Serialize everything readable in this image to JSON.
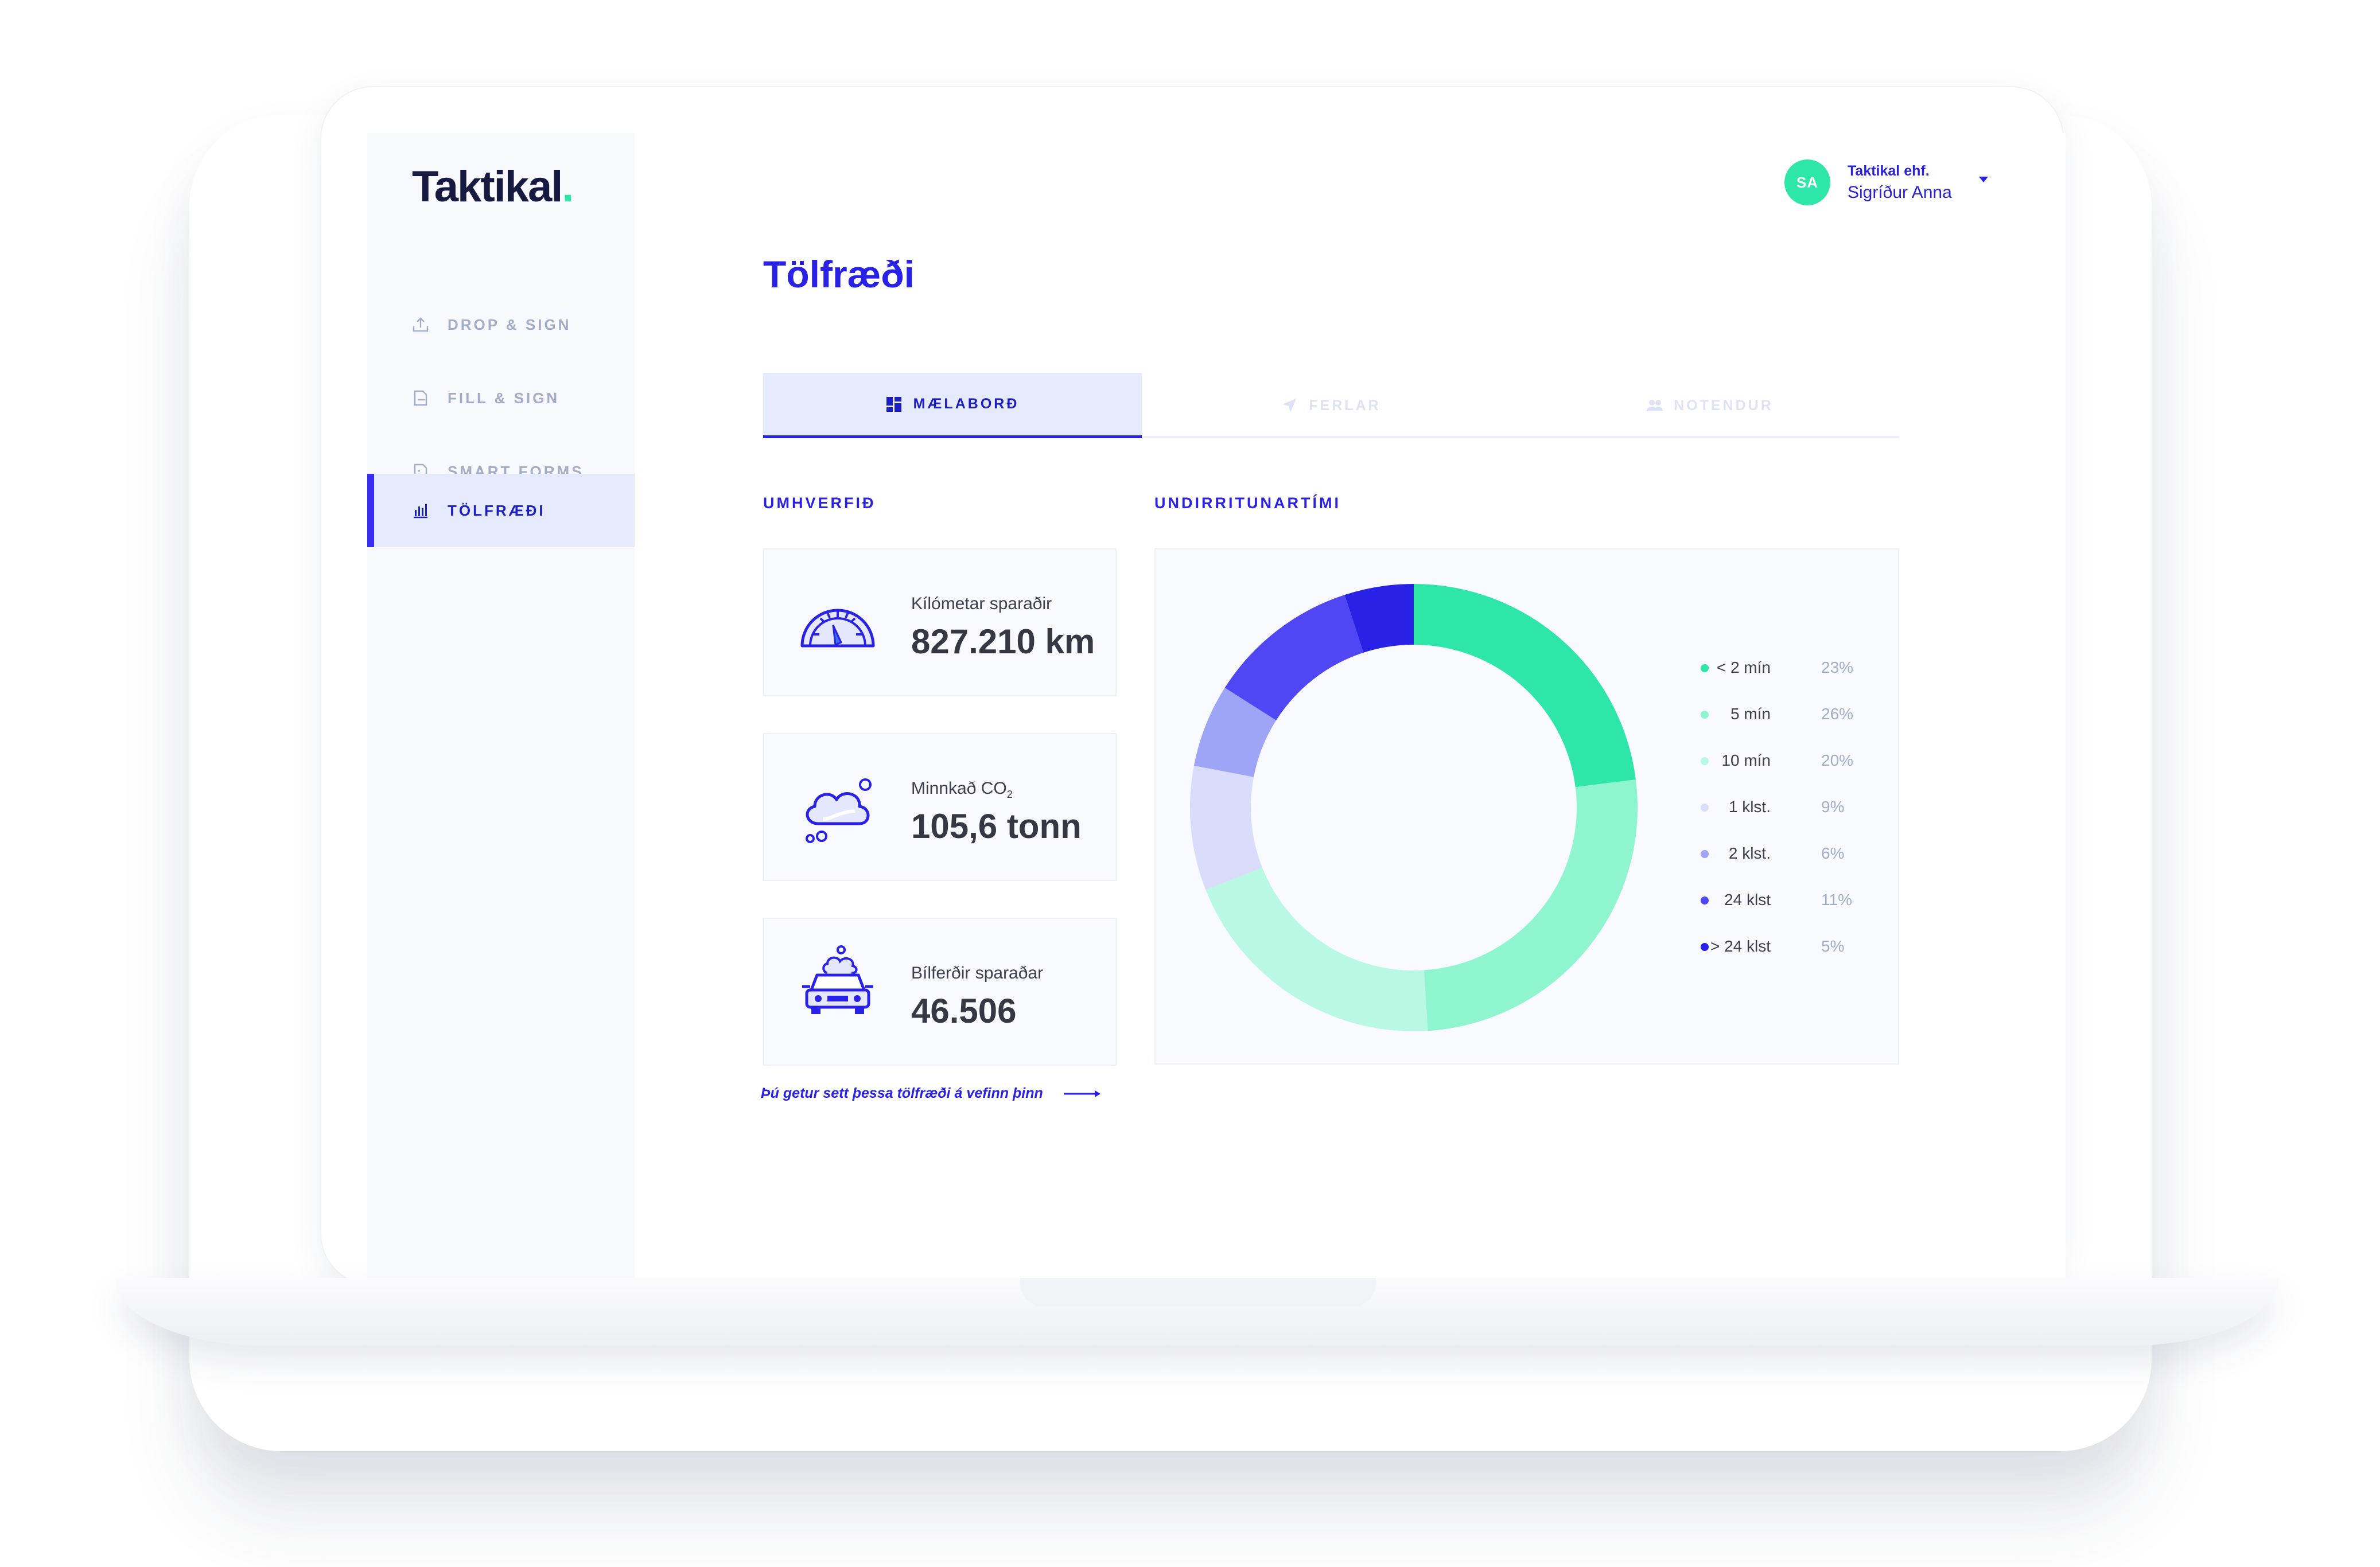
{
  "brand": {
    "logo_text": "Taktikal",
    "logo_dot": ".",
    "accent": "#2ee6a8",
    "primary": "#2a21e6"
  },
  "sidebar": {
    "items": [
      {
        "label": "DROP & SIGN",
        "icon": "upload-icon",
        "active": false
      },
      {
        "label": "FILL & SIGN",
        "icon": "fill-document-icon",
        "active": false
      },
      {
        "label": "SMART FORMS",
        "icon": "form-document-icon",
        "active": false
      },
      {
        "label": "TÖLFRÆÐI",
        "icon": "bar-chart-icon",
        "active": true
      }
    ]
  },
  "user": {
    "initials": "SA",
    "company": "Taktikal ehf.",
    "name": "Sigríður Anna",
    "menu_icon": "caret-down-icon"
  },
  "page": {
    "title": "Tölfræði"
  },
  "tabs": [
    {
      "label": "MÆLABORÐ",
      "icon": "dashboard-icon",
      "active": true
    },
    {
      "label": "FERLAR",
      "icon": "send-icon",
      "active": false
    },
    {
      "label": "NOTENDUR",
      "icon": "users-icon",
      "active": false
    }
  ],
  "environment": {
    "title": "UMHVERFIÐ",
    "cards": [
      {
        "label": "Kílómetar sparaðir",
        "value": "827.210 km",
        "icon": "speedometer-icon"
      },
      {
        "label_main": "Minnkað CO",
        "label_sub": "2",
        "value": "105,6 tonn",
        "icon": "cloud-icon"
      },
      {
        "label": "Bílferðir sparaðar",
        "value": "46.506",
        "icon": "car-icon"
      }
    ],
    "embed_link": "Þú getur sett þessa tölfræði á vefinn þinn",
    "embed_icon": "arrow-right-icon"
  },
  "signing_time": {
    "title": "UNDIRRITUNARTÍMI"
  },
  "chart_data": {
    "type": "pie",
    "donut": true,
    "title": "UNDIRRITUNARTÍMI",
    "legend_position": "right",
    "categories": [
      "< 2 mín",
      "5 mín",
      "10 mín",
      "1 klst.",
      "2 klst.",
      "24 klst",
      "> 24 klst"
    ],
    "values": [
      23,
      26,
      20,
      9,
      6,
      11,
      5
    ],
    "labels": [
      "23%",
      "26%",
      "20%",
      "9%",
      "6%",
      "11%",
      "5%"
    ],
    "colors": [
      "#2ee6a8",
      "#8ff5cf",
      "#b9f8e2",
      "#d9dcfb",
      "#9ea4f6",
      "#5046f4",
      "#2a21e6"
    ]
  }
}
